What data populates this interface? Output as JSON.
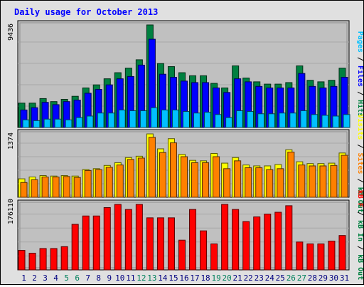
{
  "chart_data": {
    "type": "bar",
    "title": "Daily usage for October 2013",
    "categories": [
      "1",
      "2",
      "3",
      "4",
      "5",
      "6",
      "7",
      "8",
      "9",
      "10",
      "11",
      "12",
      "13",
      "14",
      "15",
      "16",
      "17",
      "18",
      "19",
      "20",
      "21",
      "22",
      "23",
      "24",
      "25",
      "26",
      "27",
      "28",
      "29",
      "30",
      "31"
    ],
    "weekend_days": [
      "5",
      "6",
      "12",
      "13",
      "19",
      "20",
      "26",
      "27"
    ],
    "panels": [
      {
        "max_label": "9436",
        "ymax": 9436,
        "right_label": [
          "Pages",
          "/",
          "Files",
          "/",
          "Hits"
        ],
        "series": [
          {
            "name": "Hits",
            "color": "#008040",
            "values": [
              2240,
              2240,
              2660,
              2380,
              2590,
              2870,
              3640,
              3920,
              4480,
              5040,
              5460,
              6230,
              9436,
              5880,
              5600,
              5040,
              4760,
              4760,
              4060,
              3640,
              5670,
              4550,
              4200,
              3990,
              3990,
              4130,
              5670,
              4340,
              4200,
              4340,
              5460
            ]
          },
          {
            "name": "Files",
            "color": "#0000ff",
            "values": [
              1610,
              1820,
              2310,
              2100,
              2380,
              2520,
              3150,
              3500,
              3920,
              4480,
              4690,
              5740,
              8120,
              4900,
              4620,
              4270,
              4130,
              4130,
              3640,
              3220,
              4480,
              4200,
              3780,
              3640,
              3640,
              3640,
              4970,
              3780,
              3640,
              3780,
              4620
            ]
          },
          {
            "name": "Pages",
            "color": "#00c0ff",
            "values": [
              700,
              630,
              770,
              770,
              700,
              910,
              1050,
              1330,
              1330,
              1610,
              1540,
              1540,
              1820,
              1610,
              1610,
              1470,
              1330,
              1400,
              1190,
              910,
              1540,
              1470,
              1260,
              1260,
              1330,
              1330,
              1540,
              1190,
              1120,
              1050,
              1190
            ]
          }
        ]
      },
      {
        "max_label": "1374",
        "ymax": 1374,
        "right_label": [
          "Visits",
          "/",
          "Sites",
          "/",
          "kB Out"
        ],
        "series": [
          {
            "name": "Visits",
            "color": "#ffff00",
            "values": [
              400,
              440,
              470,
              460,
              470,
              460,
              600,
              620,
              690,
              750,
              860,
              890,
              1374,
              1050,
              1270,
              930,
              800,
              790,
              950,
              740,
              860,
              700,
              680,
              680,
              710,
              1030,
              770,
              730,
              730,
              740,
              960
            ]
          },
          {
            "name": "Sites",
            "color": "#ff8000",
            "values": [
              320,
              380,
              440,
              440,
              450,
              430,
              580,
              600,
              650,
              700,
              820,
              850,
              1300,
              970,
              1180,
              880,
              750,
              750,
              880,
              620,
              790,
              640,
              640,
              600,
              620,
              980,
              700,
              680,
              680,
              690,
              910
            ]
          }
        ]
      },
      {
        "max_label": "176110",
        "ymax": 176110,
        "right_label": [
          "kB F",
          "/",
          "kB In",
          "/",
          "kB Out"
        ],
        "series": [
          {
            "name": "kB F",
            "color": "#ff0000",
            "values": [
              52500,
              45000,
              57500,
              57500,
              62500,
              122500,
              145000,
              145000,
              167500,
              176110,
              162500,
              176110,
              140000,
              140000,
              140000,
              80000,
              162500,
              105000,
              70000,
              176110,
              162500,
              130000,
              142500,
              150000,
              155000,
              172500,
              75000,
              70000,
              70000,
              77500,
              92500
            ]
          }
        ]
      }
    ],
    "colors": {
      "plot_bg": "#c0c0c0",
      "frame_bg": "#e0e0e0",
      "title": "#0000ff",
      "weekend_label": "#00805c",
      "weekday_label": "#000080"
    }
  }
}
